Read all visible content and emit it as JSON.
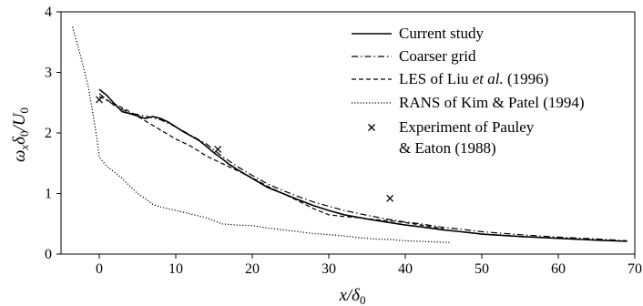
{
  "chart_data": {
    "type": "line",
    "title": "",
    "xlabel": "x/δ0",
    "ylabel": "ωxδ0/U0",
    "xlim": [
      -5,
      70
    ],
    "ylim": [
      0,
      4
    ],
    "xticks": [
      "0",
      "10",
      "20",
      "30",
      "40",
      "50",
      "60",
      "70"
    ],
    "yticks": [
      "0",
      "1",
      "2",
      "3",
      "4"
    ],
    "grid": false,
    "legend_position": "top-right",
    "series": [
      {
        "name": "Current study",
        "style": "solid",
        "color": "#000000",
        "x": [
          0,
          1,
          2,
          3,
          4,
          5,
          6,
          7,
          8,
          9,
          10,
          11,
          12,
          13,
          14,
          15,
          16,
          17,
          18,
          20,
          22,
          24,
          26,
          28,
          30,
          32,
          35,
          38,
          40,
          42,
          45,
          48,
          50,
          55,
          60,
          65,
          69
        ],
        "y": [
          2.72,
          2.62,
          2.48,
          2.35,
          2.32,
          2.28,
          2.24,
          2.27,
          2.24,
          2.18,
          2.1,
          2.02,
          1.95,
          1.88,
          1.78,
          1.67,
          1.58,
          1.48,
          1.4,
          1.25,
          1.1,
          1.0,
          0.9,
          0.8,
          0.72,
          0.65,
          0.58,
          0.52,
          0.48,
          0.45,
          0.4,
          0.36,
          0.33,
          0.29,
          0.26,
          0.23,
          0.21
        ]
      },
      {
        "name": "Coarser grid",
        "style": "dashdot",
        "color": "#000000",
        "x": [
          0,
          2,
          4,
          6,
          8,
          10,
          12,
          14,
          16,
          18,
          20,
          22,
          24,
          26,
          28,
          30,
          32,
          35,
          38,
          40,
          42,
          45,
          48,
          50,
          55,
          60,
          65,
          69
        ],
        "y": [
          2.65,
          2.45,
          2.33,
          2.28,
          2.22,
          2.1,
          1.96,
          1.82,
          1.62,
          1.45,
          1.3,
          1.16,
          1.05,
          0.95,
          0.86,
          0.79,
          0.72,
          0.64,
          0.57,
          0.53,
          0.5,
          0.44,
          0.4,
          0.37,
          0.32,
          0.28,
          0.25,
          0.22
        ]
      },
      {
        "name": "LES of Liu et al. (1996)",
        "style": "dashed",
        "color": "#000000",
        "x": [
          0,
          2,
          4,
          6,
          8,
          10,
          12,
          14,
          16,
          18,
          20,
          22,
          24,
          26,
          28,
          30,
          32,
          34,
          36,
          38,
          40,
          42,
          45
        ],
        "y": [
          2.6,
          2.48,
          2.35,
          2.2,
          2.05,
          1.9,
          1.78,
          1.62,
          1.5,
          1.38,
          1.26,
          1.12,
          1.0,
          0.88,
          0.75,
          0.65,
          0.62,
          0.6,
          0.57,
          0.55,
          0.52,
          0.48,
          0.42
        ]
      },
      {
        "name": "RANS of Kim & Patel (1994)",
        "style": "dotted",
        "color": "#000000",
        "x": [
          -3.5,
          -2.5,
          -1.5,
          -0.8,
          -0.3,
          0,
          1,
          2,
          3,
          4,
          5,
          6,
          7,
          8,
          10,
          12,
          14,
          16,
          18,
          20,
          22,
          24,
          26,
          28,
          30,
          32,
          34,
          36,
          38,
          40,
          42,
          44,
          46
        ],
        "y": [
          3.75,
          3.3,
          2.8,
          2.3,
          1.9,
          1.6,
          1.45,
          1.35,
          1.25,
          1.12,
          1.0,
          0.92,
          0.82,
          0.78,
          0.72,
          0.66,
          0.6,
          0.5,
          0.48,
          0.47,
          0.43,
          0.4,
          0.37,
          0.34,
          0.32,
          0.3,
          0.27,
          0.25,
          0.24,
          0.22,
          0.21,
          0.2,
          0.19
        ]
      },
      {
        "name": "Experiment of Pauley & Eaton (1988)",
        "style": "marker-x",
        "color": "#000000",
        "x": [
          0,
          15.5,
          38
        ],
        "y": [
          2.55,
          1.73,
          0.92
        ]
      }
    ],
    "legend_lines": [
      [
        "Current study"
      ],
      [
        "Coarser grid"
      ],
      [
        "LES of Liu ",
        "et al.",
        " (1996)"
      ],
      [
        "RANS of Kim & Patel (1994)"
      ],
      [
        "Experiment of Pauley",
        "& Eaton (1988)"
      ]
    ]
  }
}
